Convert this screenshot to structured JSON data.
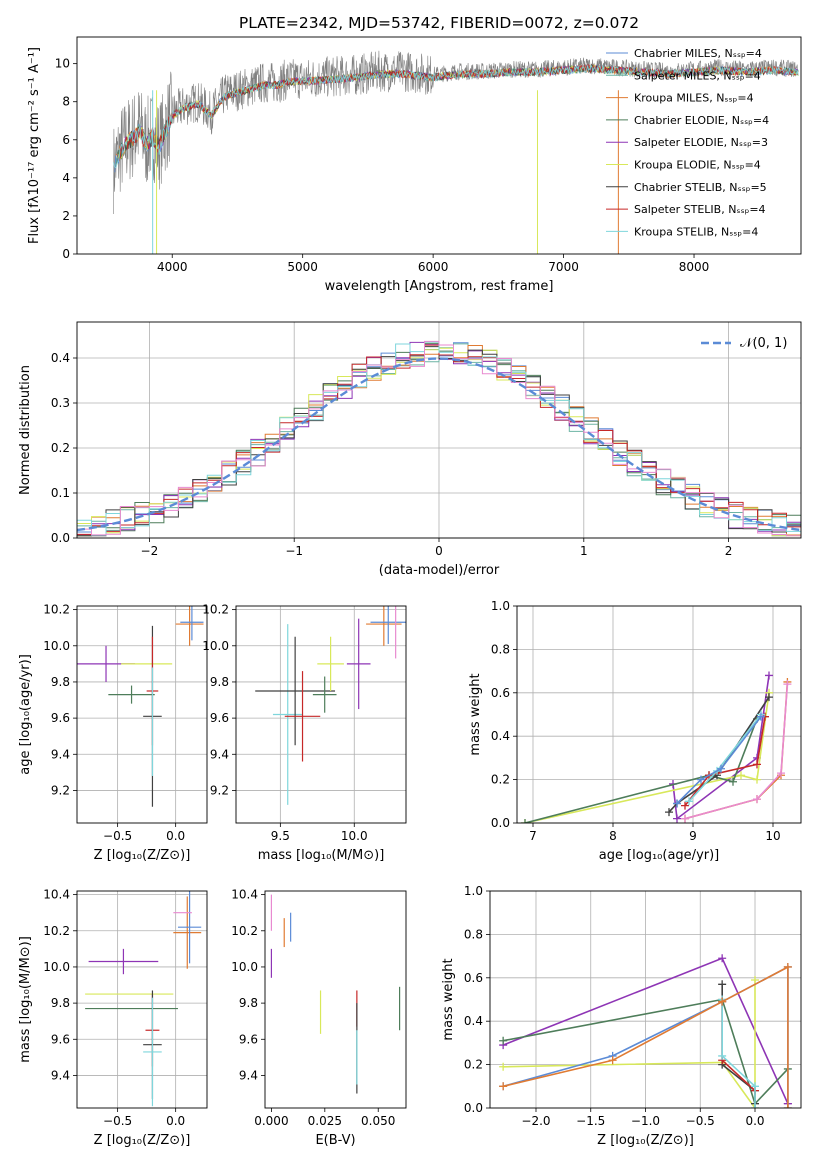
{
  "chart_data": [
    {
      "id": "spectrum",
      "type": "line",
      "title": "PLATE=2342, MJD=53742, FIBERID=0072, z=0.072",
      "xlabel": "wavelength [Angstrom, rest frame]",
      "ylabel": "Flux [fλ10⁻¹⁷ erg cm⁻² s⁻¹ A⁻¹]",
      "xlim": [
        3270,
        8820
      ],
      "ylim": [
        0,
        11.4
      ],
      "xticks": [
        4000,
        5000,
        6000,
        7000,
        8000
      ],
      "yticks": [
        0,
        2,
        4,
        6,
        8,
        10
      ],
      "grid": false,
      "legend_position": "right",
      "data_series": {
        "name": "",
        "color": "#808080",
        "x": [
          3550,
          3600,
          3650,
          3700,
          3750,
          3800,
          3850,
          3900,
          3950,
          4000,
          4100,
          4200,
          4300,
          4400,
          4500,
          4600,
          4700,
          4800,
          4900,
          5000,
          5200,
          5400,
          5600,
          5800,
          6000,
          6200,
          6400,
          6600,
          6800,
          7000,
          7200,
          7400,
          7600,
          7800,
          8000,
          8200,
          8400,
          8600,
          8800
        ],
        "y": [
          4.5,
          5.4,
          5.9,
          6.2,
          6.6,
          5.8,
          6.3,
          5.7,
          6.6,
          7.4,
          7.8,
          8.0,
          7.4,
          8.4,
          8.6,
          8.8,
          9.0,
          9.0,
          9.2,
          9.2,
          9.3,
          9.4,
          9.6,
          9.6,
          9.4,
          9.6,
          9.6,
          9.7,
          9.7,
          9.8,
          9.9,
          9.8,
          9.7,
          9.6,
          9.7,
          9.8,
          9.7,
          9.8,
          9.7
        ]
      },
      "model_series": [
        {
          "name": "Chabrier MILES, Nₛₛₚ=4",
          "color": "#5b8bd6"
        },
        {
          "name": "Salpeter MILES, Nₛₛₚ=4",
          "color": "#6cb4a4"
        },
        {
          "name": "Kroupa MILES, Nₛₛₚ=4",
          "color": "#e07b33"
        },
        {
          "name": "Chabrier ELODIE, Nₛₛₚ=4",
          "color": "#4e7d5a"
        },
        {
          "name": "Salpeter ELODIE, Nₛₛₚ=3",
          "color": "#8e35b5"
        },
        {
          "name": "Kroupa ELODIE, Nₛₛₚ=4",
          "color": "#d8e85a"
        },
        {
          "name": "Chabrier STELIB, Nₛₛₚ=5",
          "color": "#404040"
        },
        {
          "name": "Salpeter STELIB, Nₛₛₚ=4",
          "color": "#c62828"
        },
        {
          "name": "Kroupa STELIB, Nₛₛₚ=4",
          "color": "#7fd6dc"
        }
      ]
    },
    {
      "id": "residuals",
      "type": "histogram",
      "xlabel": "(data-model)/error",
      "ylabel": "Normed distribution",
      "xlim": [
        -2.5,
        2.5
      ],
      "ylim": [
        0,
        0.48
      ],
      "xticks": [
        -2,
        -1,
        0,
        1,
        2
      ],
      "yticks": [
        0.0,
        0.1,
        0.2,
        0.3,
        0.4
      ],
      "grid": true,
      "legend_position": "top-right",
      "reference_curve": {
        "name": "𝒩(0, 1)",
        "color": "#5b8bd6",
        "style": "dashed"
      },
      "series_colors": [
        "#5b8bd6",
        "#6cb4a4",
        "#e07b33",
        "#4e7d5a",
        "#8e35b5",
        "#d8e85a",
        "#404040",
        "#c62828",
        "#7fd6dc",
        "#e88ad0"
      ],
      "bin_width": 0.1
    },
    {
      "id": "age-vs-Z",
      "type": "errorbar",
      "xlabel": "Z [log₁₀(Z/Z⊙)]",
      "ylabel": "age  [log₁₀(age/yr)]",
      "xlim": [
        -0.85,
        0.27
      ],
      "ylim": [
        9.02,
        10.22
      ],
      "xticks": [
        -0.5,
        0.0
      ],
      "yticks": [
        9.2,
        9.4,
        9.6,
        9.8,
        10.0,
        10.2
      ],
      "grid": true,
      "points": [
        {
          "x": -0.6,
          "y": 9.9,
          "xerr": 0.25,
          "yerr": 0.1,
          "color": "#8e35b5"
        },
        {
          "x": -0.38,
          "y": 9.73,
          "xerr": 0.2,
          "yerr": 0.05,
          "color": "#4e7d5a"
        },
        {
          "x": -0.25,
          "y": 9.9,
          "xerr": 0.22,
          "yerr": 0.0,
          "color": "#d8e85a"
        },
        {
          "x": -0.2,
          "y": 9.61,
          "xerr": 0.08,
          "yerr": 0.5,
          "color": "#404040"
        },
        {
          "x": -0.2,
          "y": 9.75,
          "xerr": 0.05,
          "yerr": 0.3,
          "color": "#c62828"
        },
        {
          "x": -0.2,
          "y": 9.58,
          "xerr": 0.0,
          "yerr": 0.3,
          "color": "#7fd6dc"
        },
        {
          "x": 0.12,
          "y": 10.12,
          "xerr": 0.12,
          "yerr": 0.12,
          "color": "#e07b33"
        },
        {
          "x": 0.14,
          "y": 10.13,
          "xerr": 0.1,
          "yerr": 0.1,
          "color": "#5b8bd6"
        }
      ]
    },
    {
      "id": "age-vs-mass",
      "type": "errorbar",
      "xlabel": "mass [log₁₀(M/M⊙)]",
      "ylabel": "",
      "xlim": [
        9.2,
        10.35
      ],
      "ylim": [
        9.02,
        10.22
      ],
      "xticks": [
        9.5,
        10.0
      ],
      "yticks": [
        9.2,
        9.4,
        9.6,
        9.8,
        10.0,
        10.2
      ],
      "grid": true,
      "points": [
        {
          "x": 9.55,
          "y": 9.62,
          "xerr": 0.1,
          "yerr": 0.5,
          "color": "#7fd6dc"
        },
        {
          "x": 9.6,
          "y": 9.75,
          "xerr": 0.27,
          "yerr": 0.3,
          "color": "#404040"
        },
        {
          "x": 9.65,
          "y": 9.61,
          "xerr": 0.12,
          "yerr": 0.25,
          "color": "#c62828"
        },
        {
          "x": 9.8,
          "y": 9.73,
          "xerr": 0.08,
          "yerr": 0.1,
          "color": "#4e7d5a"
        },
        {
          "x": 9.84,
          "y": 9.9,
          "xerr": 0.09,
          "yerr": 0.15,
          "color": "#d8e85a"
        },
        {
          "x": 10.03,
          "y": 9.9,
          "xerr": 0.08,
          "yerr": 0.25,
          "color": "#8e35b5"
        },
        {
          "x": 10.2,
          "y": 10.12,
          "xerr": 0.12,
          "yerr": 0.12,
          "color": "#e07b33"
        },
        {
          "x": 10.23,
          "y": 10.13,
          "xerr": 0.12,
          "yerr": 0.12,
          "color": "#5b8bd6"
        },
        {
          "x": 10.28,
          "y": 10.13,
          "xerr": 0.0,
          "yerr": 0.2,
          "color": "#e88ad0"
        }
      ]
    },
    {
      "id": "massweight-vs-age",
      "type": "line",
      "xlabel": "age  [log₁₀(age/yr)]",
      "ylabel": "mass weight",
      "xlim": [
        6.8,
        10.35
      ],
      "ylim": [
        0,
        1.0
      ],
      "xticks": [
        7,
        8,
        9,
        10
      ],
      "yticks": [
        0.0,
        0.2,
        0.4,
        0.6,
        0.8,
        1.0
      ],
      "grid": true,
      "series": [
        {
          "color": "#8e35b5",
          "x": [
            8.75,
            8.8,
            9.8,
            9.95
          ],
          "y": [
            0.18,
            0.02,
            0.3,
            0.68
          ]
        },
        {
          "color": "#d8e85a",
          "x": [
            6.9,
            9.6,
            9.8,
            9.95
          ],
          "y": [
            0.0,
            0.22,
            0.2,
            0.6
          ]
        },
        {
          "color": "#4e7d5a",
          "x": [
            6.9,
            9.2,
            9.5,
            9.8
          ],
          "y": [
            0.0,
            0.22,
            0.19,
            0.48
          ]
        },
        {
          "color": "#404040",
          "x": [
            8.7,
            8.8,
            9.3,
            9.95
          ],
          "y": [
            0.05,
            0.09,
            0.22,
            0.58
          ]
        },
        {
          "color": "#c62828",
          "x": [
            8.9,
            9.2,
            9.8,
            9.9
          ],
          "y": [
            0.08,
            0.22,
            0.27,
            0.49
          ]
        },
        {
          "color": "#7fd6dc",
          "x": [
            8.95,
            9.3,
            9.85
          ],
          "y": [
            0.1,
            0.24,
            0.5
          ]
        },
        {
          "color": "#5b8bd6",
          "x": [
            8.8,
            9.1,
            9.35,
            9.85
          ],
          "y": [
            0.09,
            0.2,
            0.25,
            0.49
          ]
        },
        {
          "color": "#e07b33",
          "x": [
            8.9,
            9.8,
            10.1,
            10.18
          ],
          "y": [
            0.02,
            0.11,
            0.22,
            0.65
          ]
        },
        {
          "color": "#e88ad0",
          "x": [
            8.9,
            9.8,
            10.1,
            10.18
          ],
          "y": [
            0.02,
            0.11,
            0.23,
            0.64
          ]
        }
      ]
    },
    {
      "id": "mass-vs-Z",
      "type": "errorbar",
      "xlabel": "Z [log₁₀(Z/Z⊙)]",
      "ylabel": "mass [log₁₀(M/M⊙)]",
      "xlim": [
        -0.85,
        0.27
      ],
      "ylim": [
        9.22,
        10.42
      ],
      "xticks": [
        -0.5,
        0.0
      ],
      "yticks": [
        9.4,
        9.6,
        9.8,
        10.0,
        10.2,
        10.4
      ],
      "grid": true,
      "points": [
        {
          "x": -0.45,
          "y": 10.03,
          "xerr": 0.3,
          "yerr": 0.07,
          "color": "#8e35b5"
        },
        {
          "x": -0.4,
          "y": 9.85,
          "xerr": 0.38,
          "yerr": 0.0,
          "color": "#d8e85a"
        },
        {
          "x": -0.38,
          "y": 9.77,
          "xerr": 0.4,
          "yerr": 0.0,
          "color": "#4e7d5a"
        },
        {
          "x": -0.2,
          "y": 9.65,
          "xerr": 0.06,
          "yerr": 0.2,
          "color": "#c62828"
        },
        {
          "x": -0.2,
          "y": 9.57,
          "xerr": 0.08,
          "yerr": 0.3,
          "color": "#404040"
        },
        {
          "x": -0.2,
          "y": 9.53,
          "xerr": 0.08,
          "yerr": 0.3,
          "color": "#7fd6dc"
        },
        {
          "x": 0.1,
          "y": 10.19,
          "xerr": 0.12,
          "yerr": 0.2,
          "color": "#e07b33"
        },
        {
          "x": 0.12,
          "y": 10.22,
          "xerr": 0.1,
          "yerr": 0.2,
          "color": "#5b8bd6"
        },
        {
          "x": 0.06,
          "y": 10.3,
          "xerr": 0.08,
          "yerr": 0.0,
          "color": "#e88ad0"
        }
      ]
    },
    {
      "id": "mass-vs-EBV",
      "type": "errorbar",
      "xlabel": "E(B-V)",
      "ylabel": "",
      "xlim": [
        -0.003,
        0.063
      ],
      "ylim": [
        9.22,
        10.42
      ],
      "xticks": [
        0.0,
        0.025,
        0.05
      ],
      "yticks": [
        9.4,
        9.6,
        9.8,
        10.0,
        10.2,
        10.4
      ],
      "grid": false,
      "points": [
        {
          "x": 0.0,
          "y": 10.02,
          "xerr": 0,
          "yerr": 0.08,
          "color": "#8e35b5"
        },
        {
          "x": 0.0,
          "y": 10.3,
          "xerr": 0,
          "yerr": 0.1,
          "color": "#e88ad0"
        },
        {
          "x": 0.006,
          "y": 10.19,
          "xerr": 0,
          "yerr": 0.08,
          "color": "#e07b33"
        },
        {
          "x": 0.009,
          "y": 10.22,
          "xerr": 0,
          "yerr": 0.08,
          "color": "#5b8bd6"
        },
        {
          "x": 0.023,
          "y": 9.75,
          "xerr": 0,
          "yerr": 0.12,
          "color": "#d8e85a"
        },
        {
          "x": 0.04,
          "y": 9.77,
          "xerr": 0,
          "yerr": 0.1,
          "color": "#c62828"
        },
        {
          "x": 0.04,
          "y": 9.55,
          "xerr": 0,
          "yerr": 0.25,
          "color": "#404040"
        },
        {
          "x": 0.04,
          "y": 9.5,
          "xerr": 0,
          "yerr": 0.15,
          "color": "#7fd6dc"
        },
        {
          "x": 0.06,
          "y": 9.77,
          "xerr": 0,
          "yerr": 0.12,
          "color": "#4e7d5a"
        }
      ]
    },
    {
      "id": "massweight-vs-Z",
      "type": "line",
      "xlabel": "Z [log₁₀(Z/Z⊙)]",
      "ylabel": "mass weight",
      "xlim": [
        -2.42,
        0.42
      ],
      "ylim": [
        0,
        1.0
      ],
      "xticks": [
        -2.0,
        -1.5,
        -1.0,
        -0.5,
        0.0
      ],
      "yticks": [
        0.0,
        0.2,
        0.4,
        0.6,
        0.8,
        1.0
      ],
      "grid": true,
      "series": [
        {
          "color": "#8e35b5",
          "x": [
            -2.3,
            -0.3,
            0.3,
            0.3
          ],
          "y": [
            0.29,
            0.69,
            0.02,
            0.02
          ]
        },
        {
          "color": "#d8e85a",
          "x": [
            -2.3,
            -0.3,
            0.0,
            0.0
          ],
          "y": [
            0.19,
            0.21,
            0.0,
            0.59
          ]
        },
        {
          "color": "#4e7d5a",
          "x": [
            -2.3,
            -0.3,
            0.0,
            0.3
          ],
          "y": [
            0.31,
            0.5,
            0.02,
            0.18
          ]
        },
        {
          "color": "#404040",
          "x": [
            -0.3,
            -0.3,
            0.0,
            0.0
          ],
          "y": [
            0.57,
            0.2,
            0.08,
            0.02
          ]
        },
        {
          "color": "#c62828",
          "x": [
            -0.3,
            -0.3,
            0.0
          ],
          "y": [
            0.49,
            0.22,
            0.08
          ]
        },
        {
          "color": "#7fd6dc",
          "x": [
            -0.3,
            -0.3,
            0.0,
            0.0
          ],
          "y": [
            0.5,
            0.24,
            0.1,
            0.0
          ]
        },
        {
          "color": "#5b8bd6",
          "x": [
            -2.3,
            -1.3,
            -0.3,
            0.3,
            0.3
          ],
          "y": [
            0.1,
            0.24,
            0.49,
            0.65,
            0.0
          ]
        },
        {
          "color": "#e07b33",
          "x": [
            -2.3,
            -1.3,
            -0.3,
            0.3,
            0.3
          ],
          "y": [
            0.1,
            0.22,
            0.49,
            0.65,
            0.0
          ]
        }
      ]
    }
  ]
}
